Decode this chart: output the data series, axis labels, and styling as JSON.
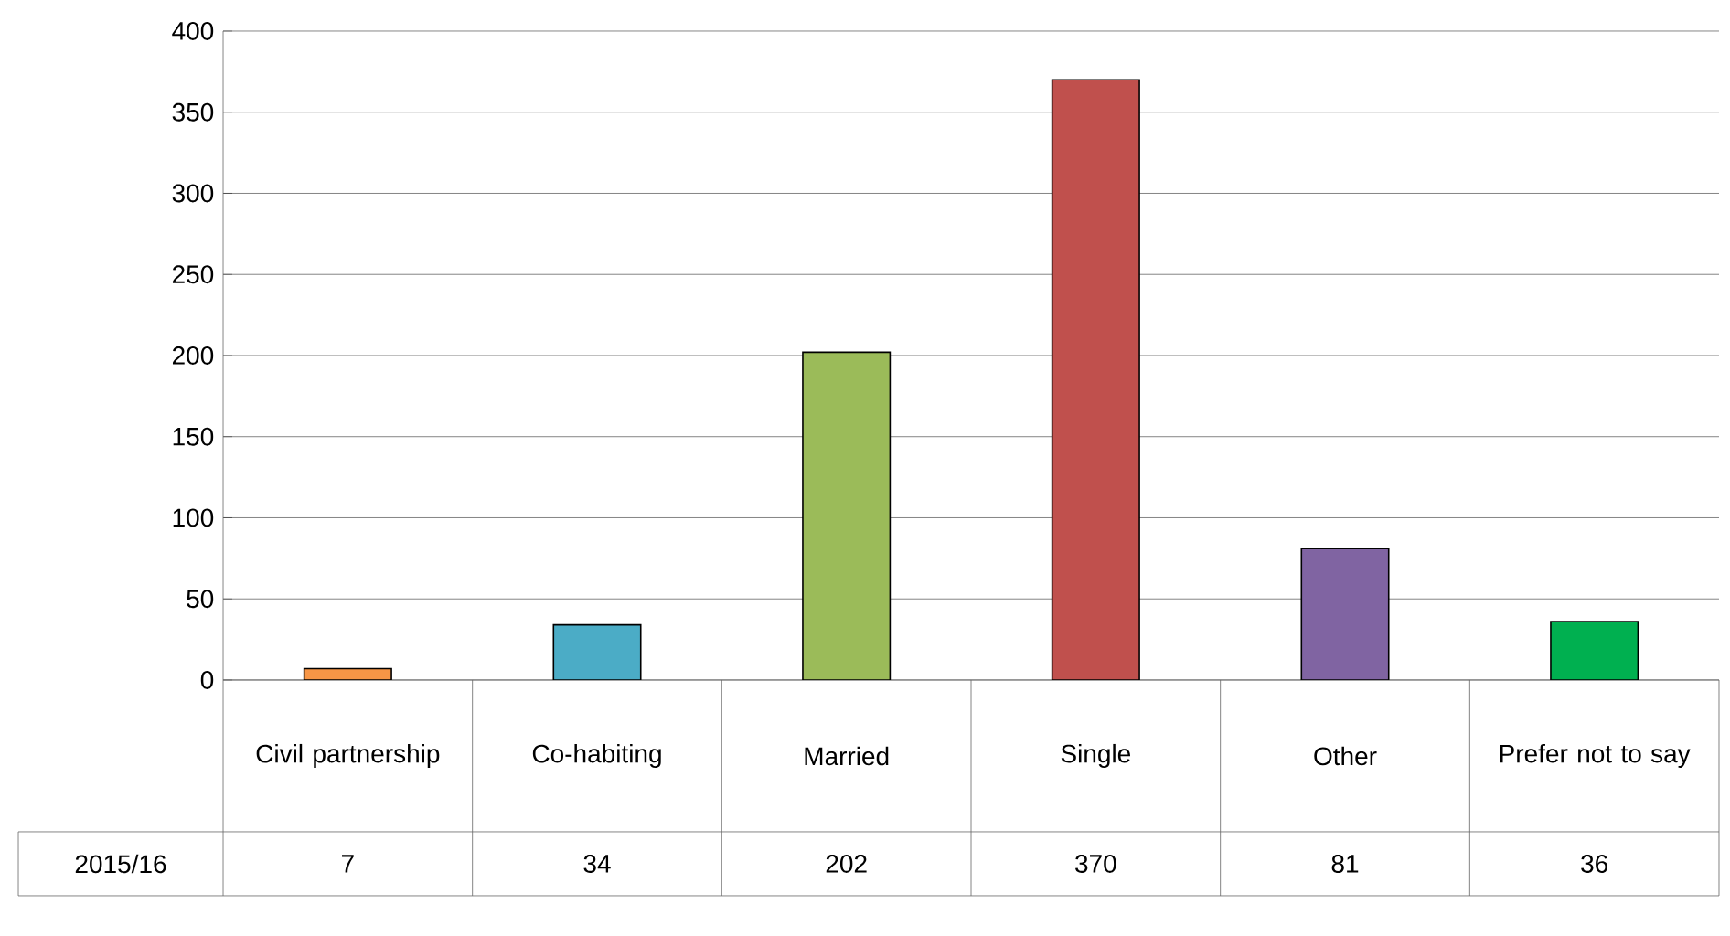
{
  "chart_data": {
    "type": "bar",
    "categories": [
      "Civil partnership",
      "Co-habiting",
      "Married",
      "Single",
      "Other",
      "Prefer not to say"
    ],
    "series": [
      {
        "name": "2015/16",
        "colors": [
          "#f79646",
          "#4bacc6",
          "#9bbb59",
          "#c0504d",
          "#8064a2",
          "#00b050"
        ],
        "values": [
          7,
          34,
          202,
          370,
          81,
          36
        ]
      }
    ],
    "ylim": [
      0,
      400
    ],
    "yticks": [
      0,
      50,
      100,
      150,
      200,
      250,
      300,
      350,
      400
    ],
    "grid": "y",
    "data_labels": true
  }
}
